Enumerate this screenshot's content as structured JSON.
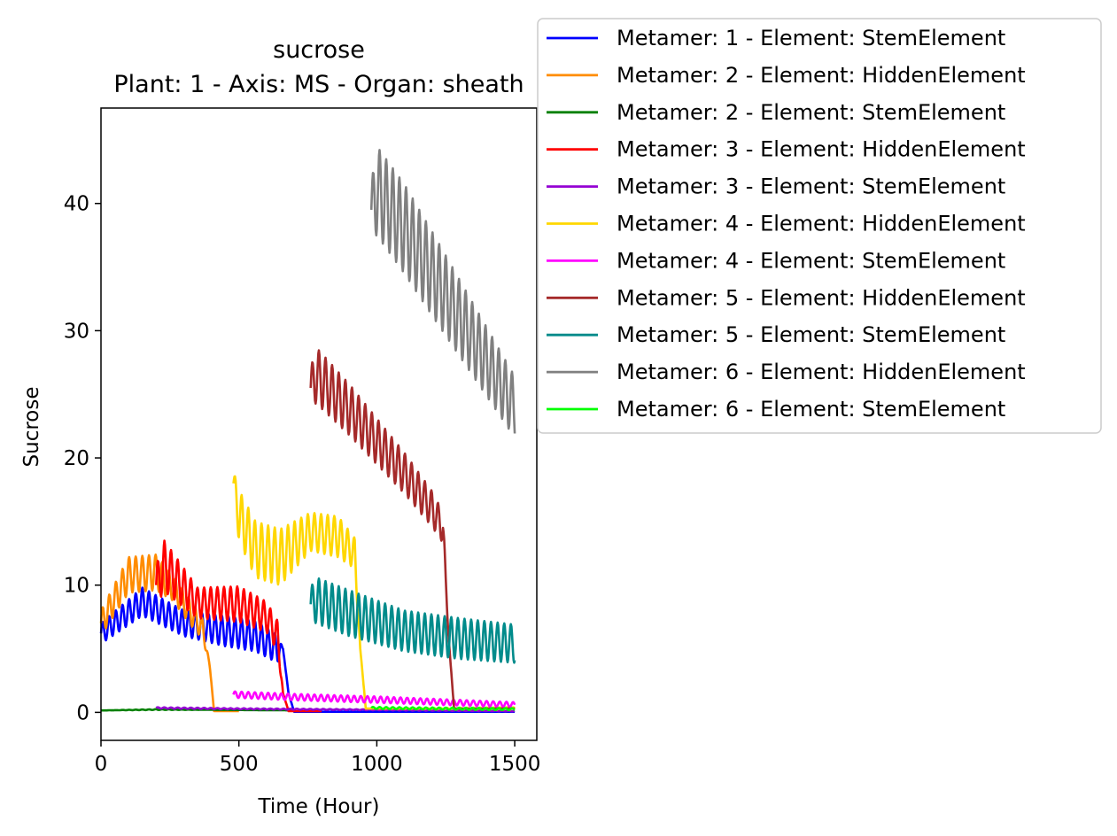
{
  "chart_data": {
    "type": "line",
    "title": "sucrose",
    "subtitle": "Plant: 1 - Axis: MS - Organ: sheath",
    "xlabel": "Time (Hour)",
    "ylabel": "Sucrose",
    "xlim": [
      0,
      1580
    ],
    "ylim": [
      -2.2,
      47.5
    ],
    "xticks": [
      0,
      500,
      1000,
      1500
    ],
    "yticks": [
      0,
      10,
      20,
      30,
      40
    ],
    "grid": false,
    "legend_position": "outside-top-right",
    "series": [
      {
        "name": "Metamer: 1 - Element: StemElement",
        "color": "#0000ff",
        "x": [
          0,
          150,
          300,
          450,
          560,
          640,
          660,
          680,
          700,
          1500
        ],
        "base": [
          6.2,
          8.7,
          7.0,
          6.4,
          6.0,
          5.0,
          5.0,
          1.5,
          0.05,
          0.05
        ],
        "amp": [
          0.8,
          1.1,
          1.0,
          1.2,
          1.2,
          1.1,
          0,
          0,
          0,
          0
        ],
        "start": 0,
        "end": 1500,
        "period": 24
      },
      {
        "name": "Metamer: 2 - Element: HiddenElement",
        "color": "#ff8c00",
        "x": [
          0,
          100,
          200,
          260,
          320,
          370,
          395,
          410,
          500,
          1500
        ],
        "base": [
          7.0,
          10.8,
          11.0,
          9.8,
          8.0,
          6.5,
          3.5,
          0.1,
          0.1,
          0.1
        ],
        "amp": [
          1.0,
          1.4,
          1.4,
          1.0,
          1.0,
          0.8,
          0,
          0,
          0,
          0
        ],
        "start": 0,
        "end": 500,
        "period": 24
      },
      {
        "name": "Metamer: 2 - Element: StemElement",
        "color": "#008000",
        "x": [
          0,
          200,
          400,
          1500
        ],
        "base": [
          0.15,
          0.22,
          0.2,
          0.05
        ],
        "amp": [
          0,
          0.03,
          0,
          0
        ],
        "start": 0,
        "end": 700,
        "period": 24
      },
      {
        "name": "Metamer: 3 - Element: HiddenElement",
        "color": "#ff0000",
        "x": [
          200,
          230,
          350,
          500,
          600,
          640,
          660,
          680,
          1500
        ],
        "base": [
          10.0,
          11.5,
          8.6,
          8.5,
          7.5,
          6.0,
          1.5,
          0.1,
          0.1
        ],
        "amp": [
          1.5,
          2.0,
          1.2,
          1.4,
          1.2,
          1.2,
          0,
          0,
          0
        ],
        "start": 200,
        "end": 800,
        "period": 24
      },
      {
        "name": "Metamer: 3 - Element: StemElement",
        "color": "#9400d3",
        "x": [
          200,
          500,
          1000,
          1500
        ],
        "base": [
          0.35,
          0.28,
          0.2,
          0.1
        ],
        "amp": [
          0.05,
          0.04,
          0.03,
          0.02
        ],
        "start": 200,
        "end": 1500,
        "period": 24
      },
      {
        "name": "Metamer: 4 - Element: HiddenElement",
        "color": "#ffd700",
        "x": [
          480,
          500,
          560,
          650,
          760,
          860,
          920,
          940,
          960,
          1500
        ],
        "base": [
          18.0,
          15.5,
          12.8,
          12.2,
          14.2,
          13.8,
          12.5,
          5.0,
          0.3,
          0.3
        ],
        "amp": [
          1.0,
          2.0,
          2.2,
          2.2,
          1.5,
          1.6,
          1.2,
          0,
          0,
          0.1
        ],
        "start": 480,
        "end": 1500,
        "period": 24
      },
      {
        "name": "Metamer: 4 - Element: StemElement",
        "color": "#ff00ff",
        "x": [
          480,
          700,
          1000,
          1500
        ],
        "base": [
          1.4,
          1.2,
          1.0,
          0.6
        ],
        "amp": [
          0.25,
          0.25,
          0.25,
          0.2
        ],
        "start": 480,
        "end": 1500,
        "period": 24
      },
      {
        "name": "Metamer: 5 - Element: HiddenElement",
        "color": "#a52a2a",
        "x": [
          760,
          780,
          900,
          1000,
          1100,
          1200,
          1240,
          1260,
          1280,
          1500
        ],
        "base": [
          25.5,
          26.5,
          23.8,
          21.3,
          18.8,
          16.0,
          14.5,
          6.0,
          0.3,
          0.3
        ],
        "amp": [
          1.5,
          2.2,
          2.0,
          1.8,
          1.6,
          1.4,
          1.2,
          0,
          0,
          0
        ],
        "start": 760,
        "end": 1500,
        "period": 24
      },
      {
        "name": "Metamer: 5 - Element: StemElement",
        "color": "#008b8b",
        "x": [
          760,
          780,
          900,
          1100,
          1300,
          1500
        ],
        "base": [
          8.5,
          8.8,
          7.8,
          6.4,
          5.8,
          5.4
        ],
        "amp": [
          1.3,
          1.8,
          1.8,
          1.6,
          1.6,
          1.5
        ],
        "start": 760,
        "end": 1500,
        "period": 24
      },
      {
        "name": "Metamer: 6 - Element: HiddenElement",
        "color": "#808080",
        "x": [
          980,
          1000,
          1100,
          1200,
          1300,
          1400,
          1500
        ],
        "base": [
          39.5,
          41.0,
          38.0,
          34.5,
          31.0,
          27.5,
          24.0
        ],
        "amp": [
          2.0,
          3.5,
          3.5,
          3.3,
          3.0,
          2.7,
          2.4
        ],
        "start": 980,
        "end": 1500,
        "period": 24
      },
      {
        "name": "Metamer: 6 - Element: StemElement",
        "color": "#00ff00",
        "x": [
          980,
          1200,
          1500
        ],
        "base": [
          0.35,
          0.3,
          0.25
        ],
        "amp": [
          0.08,
          0.08,
          0.08
        ],
        "start": 980,
        "end": 1500,
        "period": 24
      }
    ]
  }
}
